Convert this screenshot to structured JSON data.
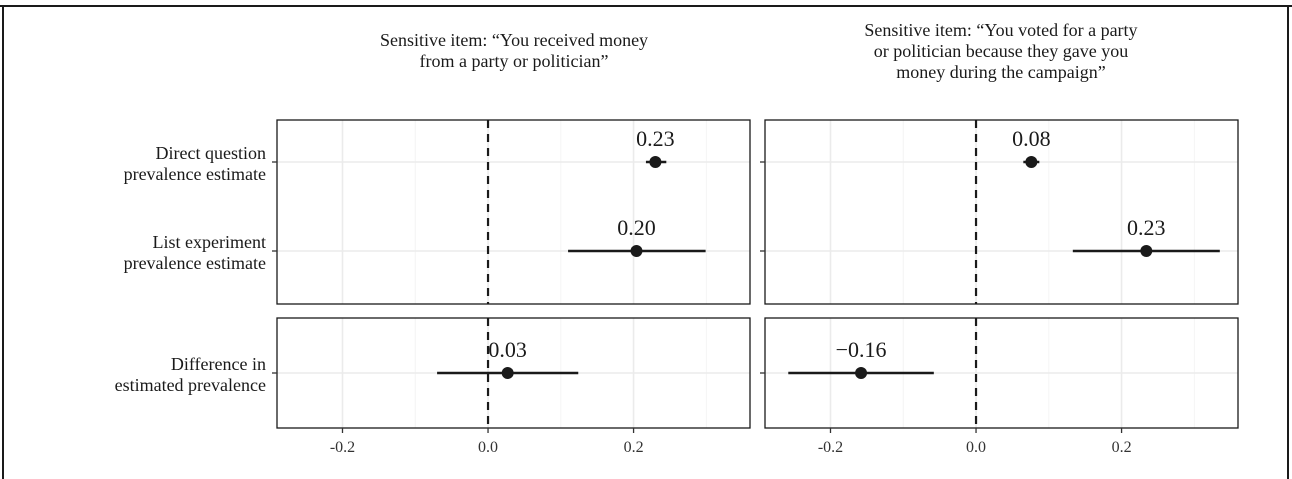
{
  "chart_data": {
    "type": "scatter",
    "subtype": "point-range / coefficient plot (faceted)",
    "x_axis": {
      "ticks": [
        -0.2,
        0.0,
        0.2
      ],
      "tick_labels": [
        "-0.2",
        "0.0",
        "0.2"
      ],
      "xlim": [
        -0.29,
        0.36
      ]
    },
    "reference_line": {
      "x": 0.0,
      "style": "dashed"
    },
    "grid": true,
    "facets": [
      {
        "title": "Sensitive item: “You received money from a party or politician”"
      },
      {
        "title": "Sensitive item: “You voted for a party or politician because they gave you money during the campaign”"
      }
    ],
    "row_groups": [
      {
        "rows": [
          "Direct question prevalence estimate",
          "List experiment prevalence estimate"
        ]
      },
      {
        "rows": [
          "Difference in estimated prevalence"
        ]
      }
    ],
    "estimates": [
      {
        "facet": 0,
        "row": "Direct question prevalence estimate",
        "estimate": 0.23,
        "ci": [
          0.217,
          0.245
        ],
        "label": "0.23"
      },
      {
        "facet": 0,
        "row": "List experiment prevalence estimate",
        "estimate": 0.204,
        "ci": [
          0.11,
          0.299
        ],
        "label": "0.20"
      },
      {
        "facet": 0,
        "row": "Difference in estimated prevalence",
        "estimate": 0.027,
        "ci": [
          -0.07,
          0.124
        ],
        "label": "0.03"
      },
      {
        "facet": 1,
        "row": "Direct question prevalence estimate",
        "estimate": 0.076,
        "ci": [
          0.065,
          0.087
        ],
        "label": "0.08"
      },
      {
        "facet": 1,
        "row": "List experiment prevalence estimate",
        "estimate": 0.234,
        "ci": [
          0.133,
          0.335
        ],
        "label": "0.23"
      },
      {
        "facet": 1,
        "row": "Difference in estimated prevalence",
        "estimate": -0.158,
        "ci": [
          -0.258,
          -0.058
        ],
        "label": "−0.16"
      }
    ]
  }
}
